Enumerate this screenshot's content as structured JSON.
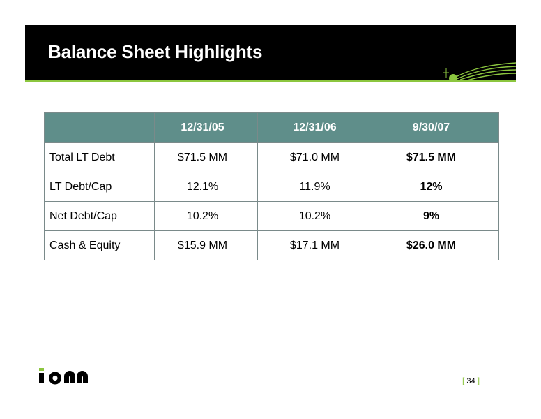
{
  "slide": {
    "title": "Balance Sheet Highlights",
    "page_number": "34",
    "accent_color": "#8cc63f",
    "header_color": "#5f8e8a"
  },
  "table": {
    "headers": [
      "",
      "12/31/05",
      "12/31/06",
      "9/30/07"
    ],
    "rows": [
      {
        "label": "Total LT Debt",
        "values": [
          "$71.5 MM",
          "$71.0 MM",
          "$71.5 MM"
        ]
      },
      {
        "label": "LT Debt/Cap",
        "values": [
          "12.1%",
          "11.9%",
          "12%"
        ]
      },
      {
        "label": "Net Debt/Cap",
        "values": [
          "10.2%",
          "10.2%",
          "9%"
        ]
      },
      {
        "label": "Cash & Equity",
        "values": [
          "$15.9 MM",
          "$17.1 MM",
          "$26.0 MM"
        ]
      }
    ]
  },
  "logo_text": "ion"
}
